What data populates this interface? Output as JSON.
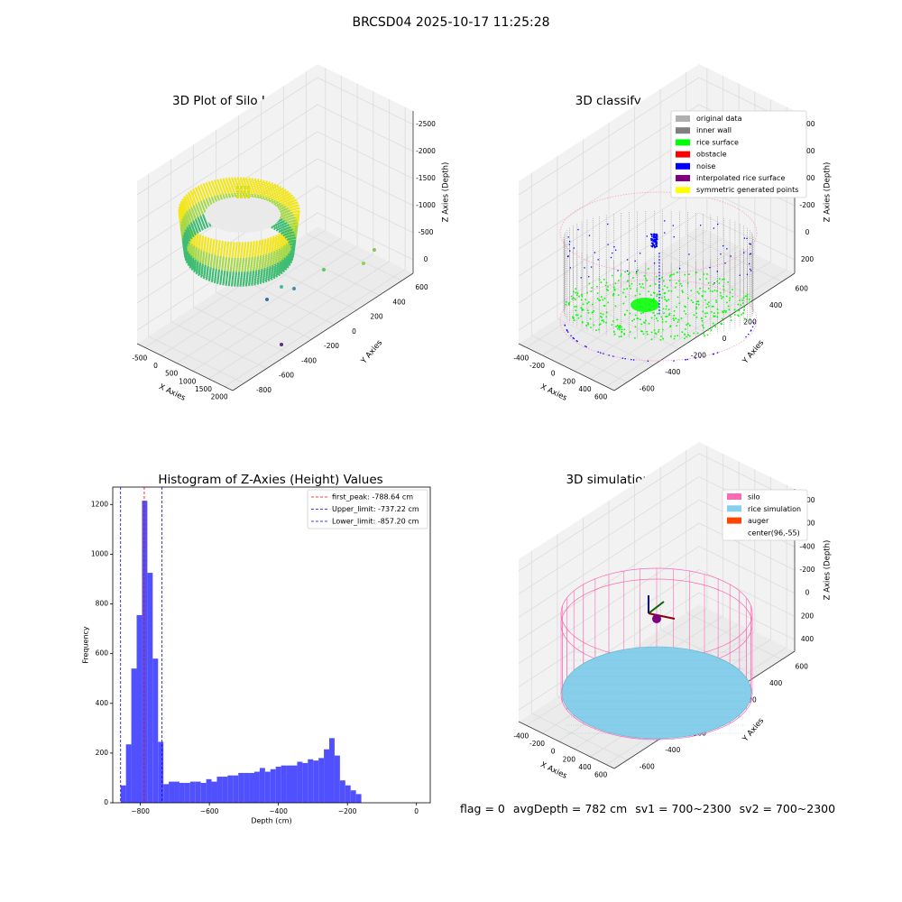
{
  "figure": {
    "suptitle": "BRCSD04 2025-10-17 11:25:28",
    "status": {
      "flag": "flag = 0",
      "avg_depth": "avgDepth = 782 cm",
      "sv1": "sv1 = 700~2300",
      "sv2": "sv2 = 700~2300"
    },
    "colors": {
      "original_data": "#b0b0b0",
      "inner_wall": "#808080",
      "rice_surface": "#00ff00",
      "obstacle": "#ff0000",
      "noise": "#0000ff",
      "interpolated_rice_surface": "#800080",
      "symmetric_generated_points": "#ffff00",
      "silo": "#ff69b4",
      "rice_simulation": "#87ceeb",
      "auger": "#ff4500",
      "histogram_bar": "#5050ff",
      "first_peak_line": "#ff0000",
      "limit_line": "#0000ff"
    }
  },
  "chart_data": [
    {
      "type": "scatter",
      "projection": "3d",
      "title": "3D Plot of Silo Interior(row data)",
      "xlabel": "X Axies",
      "ylabel": "Y Axies",
      "zlabel": "Z Axies (Depth)",
      "x_ticks": [
        "-500",
        "0",
        "500",
        "1000",
        "1500",
        "2000"
      ],
      "y_ticks": [
        "-800",
        "-600",
        "-400",
        "-200",
        "0",
        "200",
        "400",
        "600"
      ],
      "z_ticks": [
        "0",
        "-500",
        "-1000",
        "-1500",
        "-2000",
        "-2500"
      ],
      "outliers": [
        {
          "x": 2000,
          "y": 600,
          "z": -1400
        },
        {
          "x": 1900,
          "y": 400,
          "z": -1600
        },
        {
          "x": 1300,
          "y": 100,
          "z": -1700
        },
        {
          "x": 800,
          "y": -300,
          "z": -2100
        },
        {
          "x": 1000,
          "y": -100,
          "z": -2200
        },
        {
          "x": 600,
          "y": -400,
          "z": -2300
        },
        {
          "x": 1000,
          "y": -700,
          "z": -2600
        }
      ]
    },
    {
      "type": "scatter",
      "projection": "3d",
      "title": "3D classify of Silo Interior",
      "xlabel": "X Axies",
      "ylabel": "Y Axies",
      "zlabel": "Z Axies (Depth)",
      "x_ticks": [
        "-400",
        "-200",
        "0",
        "200",
        "400",
        "600"
      ],
      "y_ticks": [
        "-600",
        "-400",
        "-200",
        "0",
        "200",
        "400",
        "600"
      ],
      "z_ticks": [
        "200",
        "0",
        "-200",
        "-400",
        "-600",
        "-800"
      ],
      "legend": [
        "original data",
        "inner wall",
        "rice surface",
        "obstacle",
        "noise",
        "interpolated rice surface",
        "symmetric generated points"
      ]
    },
    {
      "type": "bar",
      "title": "Histogram of Z-Axies (Height) Values",
      "xlabel": "Depth (cm)",
      "ylabel": "Frequency",
      "xlim": [
        -880,
        40
      ],
      "ylim": [
        0,
        1270
      ],
      "x_ticks": [
        -800,
        -600,
        -400,
        -200,
        0
      ],
      "y_ticks": [
        0,
        200,
        400,
        600,
        800,
        1000,
        1200
      ],
      "bin_width": 15.5,
      "bin_edges_start": -857.2,
      "values": [
        70,
        235,
        540,
        755,
        1215,
        925,
        580,
        245,
        75,
        85,
        85,
        80,
        80,
        85,
        85,
        80,
        95,
        85,
        105,
        105,
        110,
        110,
        120,
        120,
        120,
        125,
        140,
        125,
        135,
        145,
        150,
        150,
        150,
        165,
        160,
        175,
        170,
        180,
        215,
        260,
        190,
        90,
        70,
        50,
        35
      ],
      "vlines": [
        {
          "name": "first_peak: -788.64 cm",
          "x": -788.64,
          "color": "#ff0000"
        },
        {
          "name": "Upper_limit: -737.22 cm",
          "x": -737.22,
          "color": "#0000ff"
        },
        {
          "name": "Lower_limit: -857.20 cm",
          "x": -857.2,
          "color": "#0000ff"
        }
      ],
      "legend_position": "top-right"
    },
    {
      "type": "surface",
      "projection": "3d",
      "title": "3D simulation of Silo Interior",
      "xlabel": "X Axies",
      "ylabel": "Y Axies",
      "zlabel": "Z Axies (Depth)",
      "x_ticks": [
        "-400",
        "-200",
        "0",
        "200",
        "400",
        "600"
      ],
      "y_ticks": [
        "-600",
        "-400",
        "-200",
        "0",
        "200",
        "400",
        "600"
      ],
      "z_ticks": [
        "400",
        "200",
        "0",
        "-200",
        "-400",
        "-600",
        "-800"
      ],
      "legend": [
        "silo",
        "rice simulation",
        "auger",
        "center(96,-55)"
      ]
    }
  ]
}
